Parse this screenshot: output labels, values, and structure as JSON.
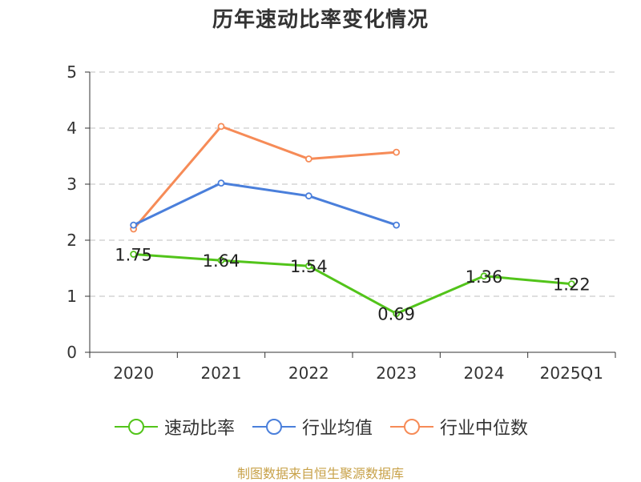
{
  "chart_data": {
    "type": "line",
    "title": "历年速动比率变化情况",
    "categories": [
      "2020",
      "2021",
      "2022",
      "2023",
      "2024",
      "2025Q1"
    ],
    "ylim": [
      0,
      5
    ],
    "yticks": [
      0,
      1,
      2,
      3,
      4,
      5
    ],
    "grid": true,
    "legend_position": "bottom",
    "series": [
      {
        "name": "速动比率",
        "color": "#52c41a",
        "values": [
          1.75,
          1.64,
          1.54,
          0.69,
          1.36,
          1.22
        ],
        "labels": true
      },
      {
        "name": "行业均值",
        "color": "#4a7fdb",
        "values": [
          2.27,
          3.02,
          2.79,
          2.27,
          null,
          null
        ],
        "labels": false
      },
      {
        "name": "行业中位数",
        "color": "#f68b57",
        "values": [
          2.2,
          4.03,
          3.45,
          3.57,
          null,
          null
        ],
        "labels": false
      }
    ]
  },
  "source": "制图数据来自恒生聚源数据库"
}
